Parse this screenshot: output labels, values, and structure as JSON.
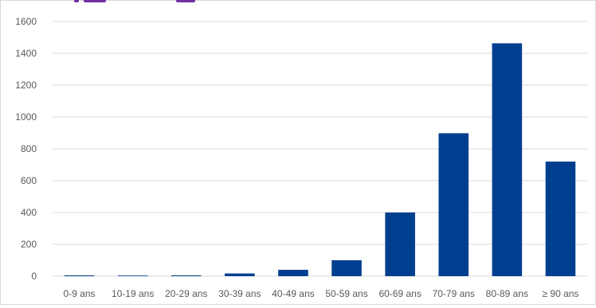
{
  "chart_data": {
    "type": "bar",
    "title": "",
    "xlabel": "",
    "ylabel": "",
    "categories": [
      "0-9 ans",
      "10-19 ans",
      "20-29 ans",
      "30-39 ans",
      "40-49 ans",
      "50-59 ans",
      "60-69 ans",
      "70-79 ans",
      "80-89 ans",
      "≥ 90 ans"
    ],
    "values": [
      5,
      1,
      5,
      17,
      40,
      100,
      400,
      898,
      1463,
      720
    ],
    "ylim": [
      0,
      1600
    ],
    "yticks": [
      "0",
      "200",
      "400",
      "600",
      "800",
      "1000",
      "1200",
      "1400",
      "1600"
    ],
    "grid": true,
    "legend": "none",
    "colors": {
      "bar": "#003f8f",
      "grid": "#d9d9d9",
      "text": "#595959",
      "title_accent": "#7030a0"
    }
  }
}
